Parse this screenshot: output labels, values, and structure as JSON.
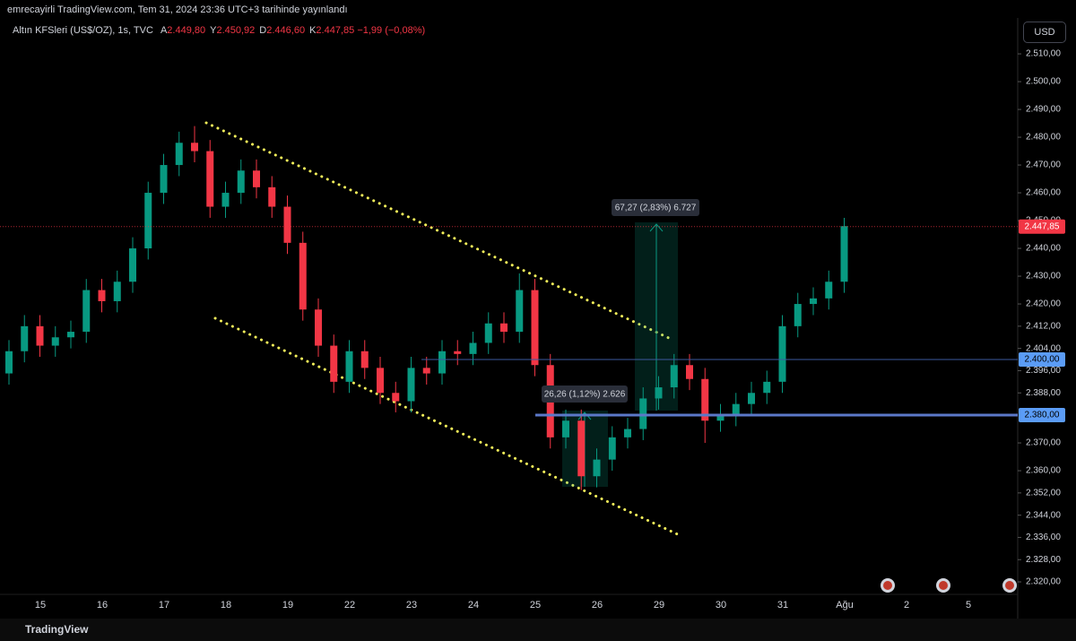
{
  "header": "emrecayirli TradingView.com, Tem 31, 2024 23:36 UTC+3 tarihinde yayınlandı",
  "chart_data": {
    "type": "candlestick",
    "symbol": "Altın KFSleri (US$/OZ), 1s, TVC",
    "ohlc_legend": [
      {
        "label": "A",
        "value": "2.449,80"
      },
      {
        "label": "Y",
        "value": "2.450,92"
      },
      {
        "label": "D",
        "value": "2.446,60"
      },
      {
        "label": "K",
        "value": "2.447,85"
      }
    ],
    "change": "−1,99 (−0,08%)",
    "currency": "USD",
    "categories": [
      "15",
      "16",
      "17",
      "18",
      "19",
      "22",
      "23",
      "24",
      "25",
      "26",
      "29",
      "30",
      "31",
      "Ağu",
      "2",
      "5"
    ],
    "ylim": [
      2308.4,
      2519.7
    ],
    "yticks": [
      {
        "value": 2510,
        "label": "2.510,00"
      },
      {
        "value": 2500,
        "label": "2.500,00"
      },
      {
        "value": 2490,
        "label": "2.490,00"
      },
      {
        "value": 2480,
        "label": "2.480,00"
      },
      {
        "value": 2470,
        "label": "2.470,00"
      },
      {
        "value": 2460,
        "label": "2.460,00"
      },
      {
        "value": 2450,
        "label": "2.450,00"
      },
      {
        "value": 2440,
        "label": "2.440,00"
      },
      {
        "value": 2430,
        "label": "2.430,00"
      },
      {
        "value": 2420,
        "label": "2.420,00"
      },
      {
        "value": 2412,
        "label": "2.412,00"
      },
      {
        "value": 2404,
        "label": "2.404,00"
      },
      {
        "value": 2396,
        "label": "2.396,00"
      },
      {
        "value": 2388,
        "label": "2.388,00"
      },
      {
        "value": 2370,
        "label": "2.370,00"
      },
      {
        "value": 2360,
        "label": "2.360,00"
      },
      {
        "value": 2352,
        "label": "2.352,00"
      },
      {
        "value": 2344,
        "label": "2.344,00"
      },
      {
        "value": 2336,
        "label": "2.336,00"
      },
      {
        "value": 2328,
        "label": "2.328,00"
      },
      {
        "value": 2320,
        "label": "2.320,00"
      }
    ],
    "open": [
      2395,
      2403,
      2412,
      2405,
      2408,
      2410,
      2425,
      2421,
      2428,
      2440,
      2460,
      2470,
      2478,
      2475,
      2455,
      2460,
      2468,
      2462,
      2455,
      2442,
      2418,
      2405,
      2392,
      2403,
      2397,
      2388,
      2385,
      2397,
      2395,
      2403,
      2402,
      2406,
      2413,
      2410,
      2425,
      2398,
      2372,
      2378,
      2358,
      2364,
      2372,
      2375,
      2386,
      2390,
      2398,
      2393,
      2378,
      2380,
      2384,
      2388,
      2392,
      2412,
      2420,
      2422,
      2428
    ],
    "high": [
      2407,
      2416,
      2416,
      2412,
      2414,
      2429,
      2429,
      2432,
      2444,
      2464,
      2474,
      2482,
      2484,
      2479,
      2464,
      2472,
      2472,
      2466,
      2459,
      2446,
      2422,
      2409,
      2407,
      2407,
      2401,
      2392,
      2401,
      2401,
      2407,
      2407,
      2410,
      2417,
      2417,
      2431,
      2429,
      2402,
      2382,
      2382,
      2368,
      2376,
      2379,
      2390,
      2394,
      2402,
      2402,
      2397,
      2384,
      2388,
      2392,
      2396,
      2416,
      2424,
      2426,
      2432,
      2451
    ],
    "low": [
      2391,
      2399,
      2401,
      2401,
      2404,
      2406,
      2417,
      2417,
      2424,
      2436,
      2456,
      2466,
      2471,
      2451,
      2451,
      2456,
      2458,
      2451,
      2438,
      2414,
      2401,
      2388,
      2388,
      2393,
      2384,
      2381,
      2381,
      2391,
      2391,
      2398,
      2398,
      2402,
      2406,
      2406,
      2394,
      2368,
      2368,
      2353,
      2354,
      2360,
      2368,
      2371,
      2382,
      2386,
      2389,
      2370,
      2374,
      2376,
      2380,
      2384,
      2388,
      2408,
      2416,
      2418,
      2424
    ],
    "close": [
      2403,
      2412,
      2405,
      2408,
      2410,
      2425,
      2421,
      2428,
      2440,
      2460,
      2470,
      2478,
      2475,
      2455,
      2460,
      2468,
      2462,
      2455,
      2442,
      2418,
      2405,
      2392,
      2403,
      2397,
      2388,
      2385,
      2397,
      2395,
      2403,
      2402,
      2406,
      2413,
      2410,
      2425,
      2398,
      2372,
      2378,
      2358,
      2364,
      2372,
      2375,
      2386,
      2390,
      2398,
      2393,
      2378,
      2380,
      2384,
      2388,
      2392,
      2412,
      2420,
      2422,
      2428,
      2448
    ],
    "up_color": "#089981",
    "down_color": "#f23645",
    "grid": false,
    "last_price": {
      "value": 2447.85,
      "label": "2.447,85"
    },
    "levels": [
      {
        "value": 2400,
        "label": "2.400,00"
      },
      {
        "value": 2380,
        "label": "2.380,00"
      }
    ],
    "measures": [
      "67,27 (2,83%) 6.727",
      "26,26 (1,12%) 2.626"
    ]
  },
  "footer": "TradingView"
}
